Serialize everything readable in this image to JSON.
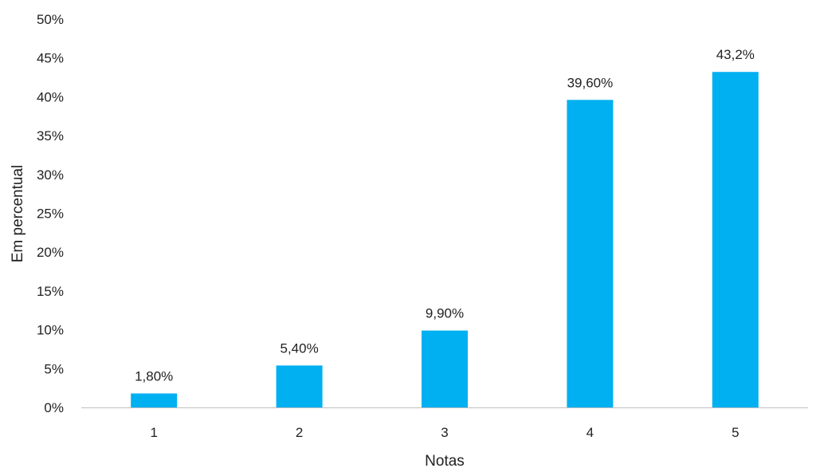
{
  "chart_data": {
    "type": "bar",
    "title": "",
    "xlabel": "Notas",
    "ylabel": "Em percentual",
    "categories": [
      "1",
      "2",
      "3",
      "4",
      "5"
    ],
    "values": [
      1.8,
      5.4,
      9.9,
      39.6,
      43.2
    ],
    "data_labels": [
      "1,80%",
      "5,40%",
      "9,90%",
      "39,60%",
      "43,2%"
    ],
    "y_ticks": [
      0,
      5,
      10,
      15,
      20,
      25,
      30,
      35,
      40,
      45,
      50
    ],
    "y_tick_labels": [
      "0%",
      "5%",
      "10%",
      "15%",
      "20%",
      "25%",
      "30%",
      "35%",
      "40%",
      "45%",
      "50%"
    ],
    "ylim": [
      0,
      50
    ],
    "grid": false,
    "legend": "none",
    "bar_color": "#00B0F0",
    "axis_color": "#bfbfbf"
  }
}
